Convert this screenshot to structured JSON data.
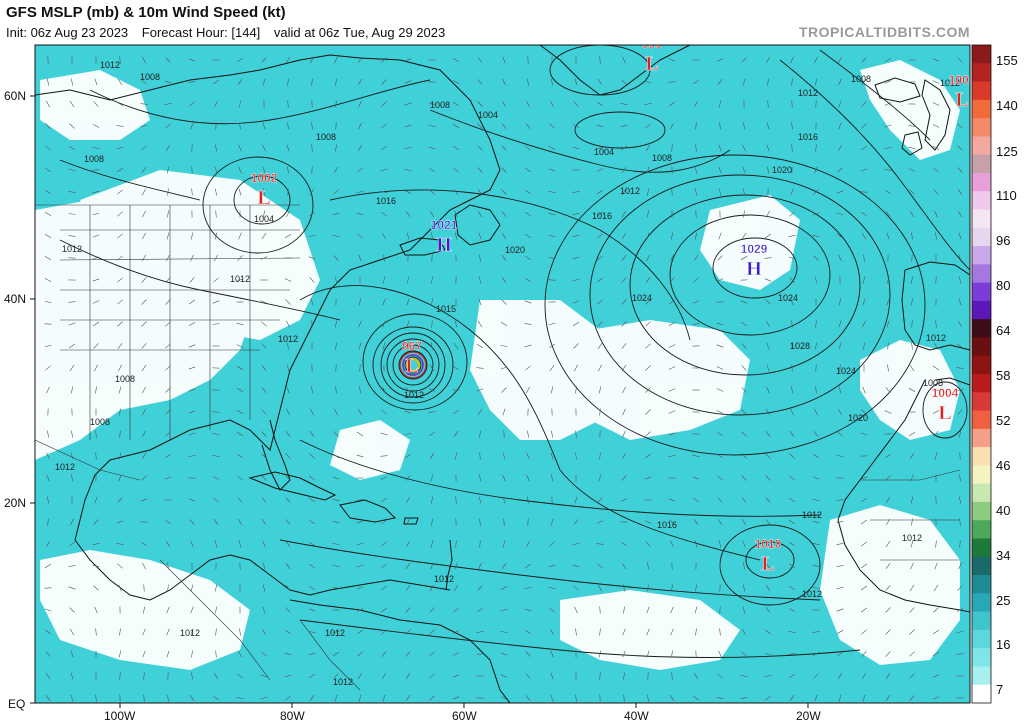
{
  "header": {
    "title": "GFS MSLP (mb) & 10m Wind Speed (kt)",
    "init": "Init: 06z Aug 23 2023",
    "forecast_hour": "Forecast Hour: [144]",
    "valid": "valid at 06z Tue, Aug 29 2023",
    "brand": "TROPICALTIDBITS.COM"
  },
  "axes": {
    "lat_labels": [
      "60N",
      "40N",
      "20N",
      "EQ"
    ],
    "lon_labels": [
      "100W",
      "80W",
      "60W",
      "40W",
      "20W"
    ]
  },
  "colorbar": {
    "ticks": [
      "155",
      "140",
      "125",
      "110",
      "96",
      "80",
      "64",
      "58",
      "52",
      "46",
      "40",
      "34",
      "25",
      "16",
      "7"
    ],
    "colors": [
      "#8b1a1a",
      "#b52222",
      "#d93a2a",
      "#f06a3a",
      "#f28a6a",
      "#f4a9a0",
      "#c8a0a8",
      "#e8a0d8",
      "#f0c8ec",
      "#f6e6f4",
      "#e6d6f0",
      "#c8a8e8",
      "#a478e0",
      "#7c3cd8",
      "#5a18b8",
      "#3c0c18",
      "#6a1010",
      "#8e1414",
      "#b81c1c",
      "#d83a3a",
      "#f06040",
      "#f4a088",
      "#f8e0b0",
      "#f4f4c0",
      "#c8e8b0",
      "#8ccc80",
      "#4ea85a",
      "#1e7a3a",
      "#1a6a6a",
      "#1e8c96",
      "#28a8b4",
      "#40c4cc",
      "#5cd8dc",
      "#7ee6e8",
      "#a8f0f0",
      "#ffffff"
    ]
  },
  "systems": [
    {
      "type": "L",
      "value": "999"
    },
    {
      "type": "L",
      "value": "1002"
    },
    {
      "type": "H",
      "value": "1021"
    },
    {
      "type": "H",
      "value": "1029"
    },
    {
      "type": "L",
      "value": "967"
    },
    {
      "type": "L",
      "value": "1004"
    },
    {
      "type": "L",
      "value": "1010"
    },
    {
      "type": "L",
      "value": "1001"
    }
  ],
  "contour_labels": [
    "1012",
    "1008",
    "1008",
    "1004",
    "1008",
    "1004",
    "1016",
    "1012",
    "1008",
    "1012",
    "1012",
    "1008",
    "1008",
    "1012",
    "1020",
    "1015",
    "1012",
    "1004",
    "1008",
    "1012",
    "1016",
    "1020",
    "1024",
    "1024",
    "1028",
    "1024",
    "1020",
    "1016",
    "1012",
    "1008",
    "1012",
    "1016",
    "1012",
    "1012",
    "1012",
    "1012",
    "1012",
    "1012",
    "1008",
    "1012",
    "1012"
  ],
  "colors": {
    "ocean_wind": "#3fd0d8",
    "calm": "#ffffff",
    "low": "#e02020",
    "high": "#3a1ec8",
    "land_line": "#111111",
    "isobar": "#1a1a1a"
  }
}
